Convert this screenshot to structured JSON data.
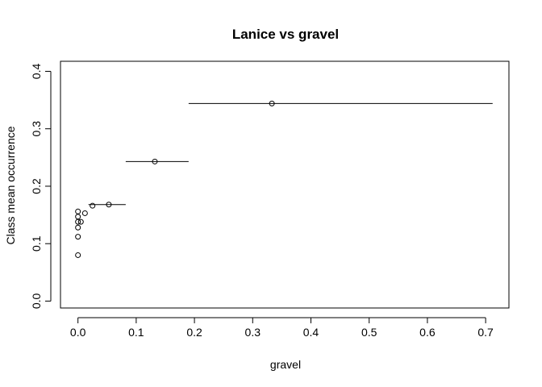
{
  "chart_data": {
    "type": "scatter",
    "title": "Lanice vs gravel",
    "xlabel": "gravel",
    "ylabel": "Class mean occurrence",
    "xlim": [
      -0.03,
      0.74
    ],
    "ylim": [
      -0.012,
      0.4175
    ],
    "x_ticks": [
      0.0,
      0.1,
      0.2,
      0.3,
      0.4,
      0.5,
      0.6,
      0.7
    ],
    "x_tick_labels": [
      "0.0",
      "0.1",
      "0.2",
      "0.3",
      "0.4",
      "0.5",
      "0.6",
      "0.7"
    ],
    "y_ticks": [
      0.0,
      0.1,
      0.2,
      0.3,
      0.4
    ],
    "y_tick_labels": [
      "0.0",
      "0.1",
      "0.2",
      "0.3",
      "0.4"
    ],
    "grid": false,
    "points": [
      {
        "x": 0.0,
        "y": 0.08
      },
      {
        "x": 0.0,
        "y": 0.112
      },
      {
        "x": 0.0,
        "y": 0.128
      },
      {
        "x": 0.0,
        "y": 0.138
      },
      {
        "x": 0.0,
        "y": 0.147
      },
      {
        "x": 0.0,
        "y": 0.156
      },
      {
        "x": 0.005,
        "y": 0.138
      },
      {
        "x": 0.012,
        "y": 0.153
      },
      {
        "x": 0.025,
        "y": 0.166
      },
      {
        "x": 0.053,
        "y": 0.168
      },
      {
        "x": 0.132,
        "y": 0.243
      },
      {
        "x": 0.333,
        "y": 0.344
      }
    ],
    "ranges": [
      {
        "xmin": 0.018,
        "xmax": 0.082,
        "y": 0.168
      },
      {
        "xmin": 0.082,
        "xmax": 0.19,
        "y": 0.243
      },
      {
        "xmin": 0.19,
        "xmax": 0.712,
        "y": 0.344
      }
    ]
  }
}
